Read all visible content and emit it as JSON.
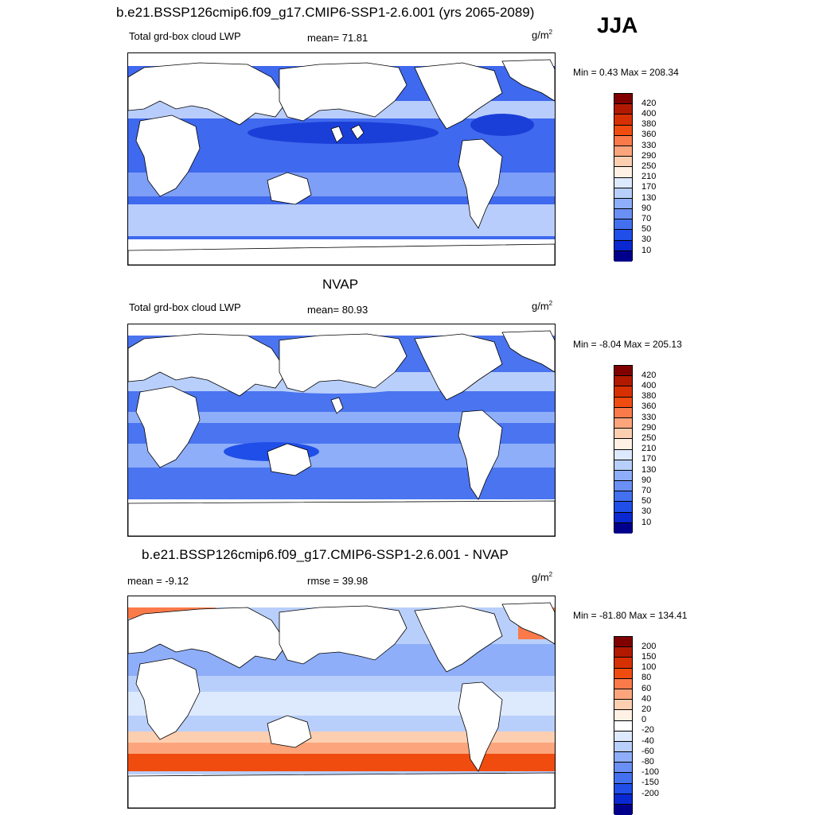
{
  "header": {
    "title": "b.e21.BSSP126cmip6.f09_g17.CMIP6-SSP1-2.6.001 (yrs 2065-2089)",
    "season": "JJA"
  },
  "panels": [
    {
      "variable": "Total grd-box cloud LWP",
      "stat1": "mean=  71.81",
      "stat2": "",
      "units_base": "g/m",
      "units_exp": "2",
      "minmax": "Min =   0.43 Max = 208.34",
      "colorbar": {
        "labels": [
          "420",
          "400",
          "380",
          "360",
          "330",
          "290",
          "250",
          "210",
          "170",
          "130",
          "90",
          "70",
          "50",
          "30",
          "10"
        ],
        "colors": [
          "#800000",
          "#b11a00",
          "#d73000",
          "#f04c10",
          "#fb7a4a",
          "#fca57c",
          "#fdcfb1",
          "#fff1e3",
          "#dde9fd",
          "#b9cffb",
          "#8eaefa",
          "#6a8ff5",
          "#4270ef",
          "#1f4ee8",
          "#0a28d2",
          "#00008c"
        ]
      },
      "map_style": {
        "ocean": "#3f69ee",
        "band": "#7d9ff7",
        "light": "#b8cdfb",
        "dark": "#1a3fd8"
      }
    },
    {
      "title": "NVAP",
      "variable": "Total grd-box cloud LWP",
      "stat1": "mean=  80.93",
      "stat2": "",
      "units_base": "g/m",
      "units_exp": "2",
      "minmax": "Min =  -8.04 Max = 205.13",
      "colorbar": {
        "labels": [
          "420",
          "400",
          "380",
          "360",
          "330",
          "290",
          "250",
          "210",
          "170",
          "130",
          "90",
          "70",
          "50",
          "30",
          "10"
        ],
        "colors": [
          "#800000",
          "#b11a00",
          "#d73000",
          "#f04c10",
          "#fb7a4a",
          "#fca57c",
          "#fdcfb1",
          "#fff1e3",
          "#dde9fd",
          "#b9cffb",
          "#8eaefa",
          "#6a8ff5",
          "#4270ef",
          "#1f4ee8",
          "#0a28d2",
          "#00008c"
        ]
      },
      "map_style": {
        "ocean": "#4a74f0",
        "band": "#8eaefa",
        "light": "#b9cffb",
        "dark": "#1f4ee8"
      }
    },
    {
      "title": "b.e21.BSSP126cmip6.f09_g17.CMIP6-SSP1-2.6.001 - NVAP",
      "variable": "mean =  -9.12",
      "stat1": "rmse =  39.98",
      "stat2": "",
      "units_base": "g/m",
      "units_exp": "2",
      "minmax": "Min = -81.80 Max = 134.41",
      "colorbar": {
        "labels": [
          "200",
          "150",
          "100",
          "80",
          "60",
          "40",
          "20",
          "0",
          "-20",
          "-40",
          "-60",
          "-80",
          "-100",
          "-150",
          "-200"
        ],
        "colors": [
          "#800000",
          "#b11a00",
          "#d73000",
          "#f04c10",
          "#fb7a4a",
          "#fca57c",
          "#fdcfb1",
          "#fff1e3",
          "#ffffff",
          "#dde9fd",
          "#b9cffb",
          "#8eaefa",
          "#6a8ff5",
          "#4270ef",
          "#1f4ee8",
          "#0a28d2",
          "#00008c"
        ]
      },
      "map_style": {
        "ocean": "#b9cffb",
        "band": "#8eaefa",
        "light": "#dde9fd",
        "dark": "#6a8ff5"
      }
    }
  ]
}
